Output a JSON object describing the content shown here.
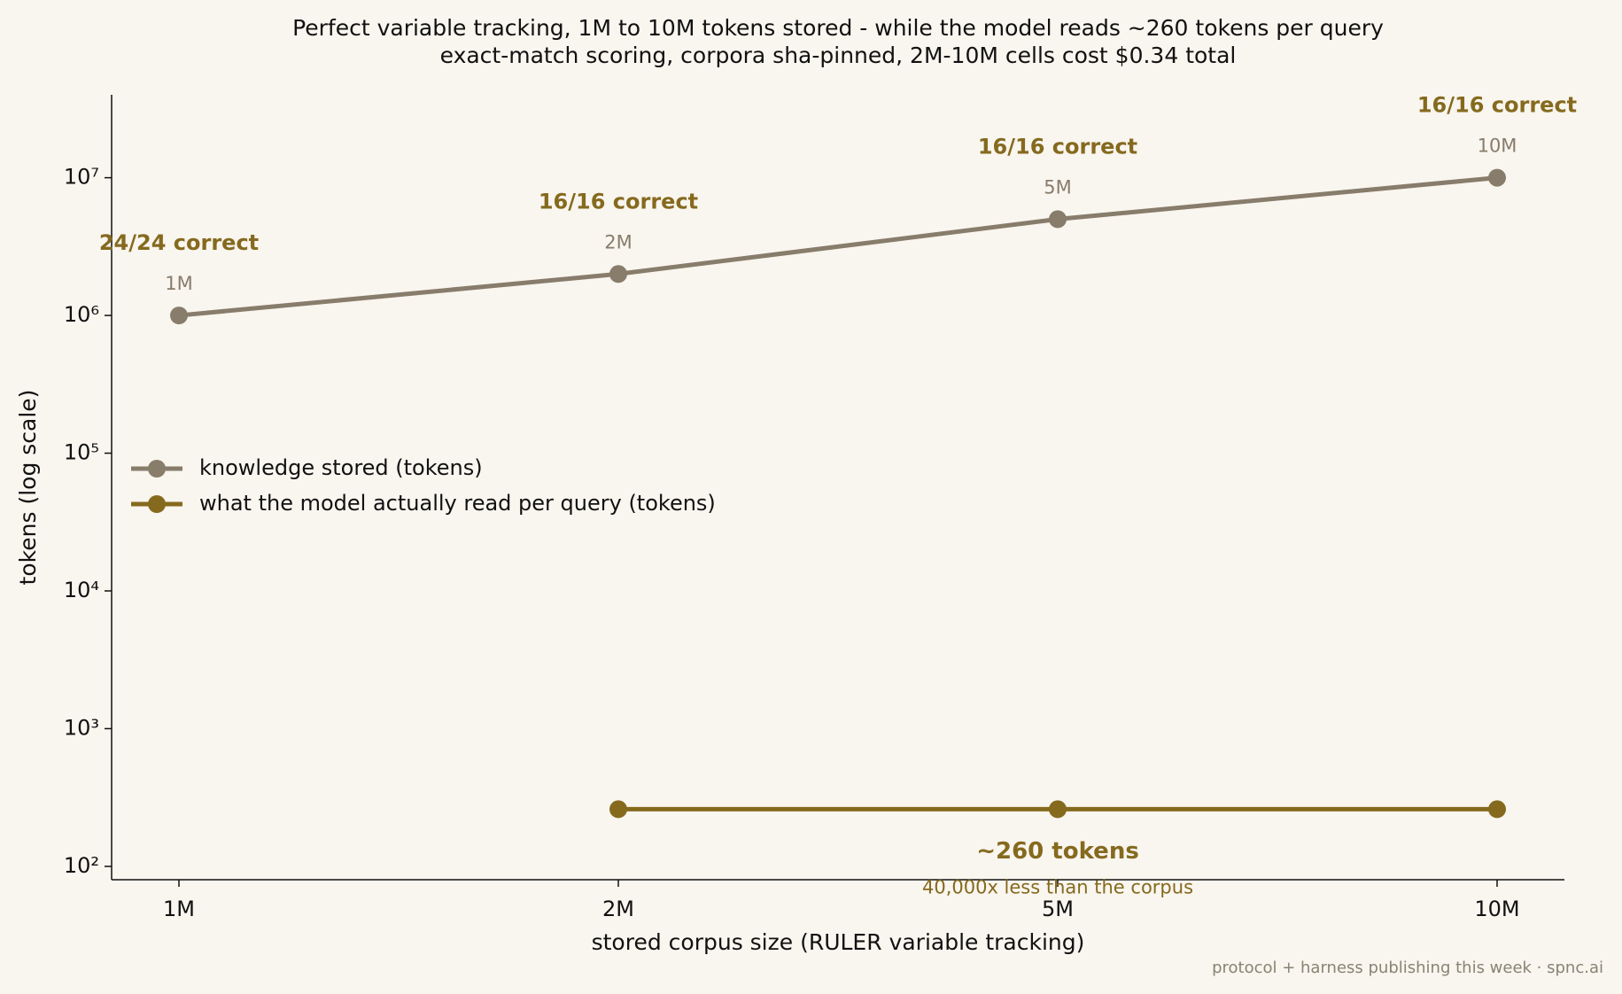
{
  "chart_data": {
    "type": "line",
    "title": "Perfect variable tracking, 1M to 10M tokens stored - while the model reads ~260 tokens per query",
    "subtitle": "exact-match scoring, corpora sha-pinned, 2M-10M cells cost $0.34 total",
    "x_label": "stored corpus size (RULER variable tracking)",
    "y_label": "tokens (log scale)",
    "categories": [
      "1M",
      "2M",
      "5M",
      "10M"
    ],
    "series": [
      {
        "name": "knowledge stored (tokens)",
        "color": "#887c6b",
        "values": [
          1000000,
          2000000,
          5000000,
          10000000
        ],
        "value_labels": [
          "1M",
          "2M",
          "5M",
          "10M"
        ]
      },
      {
        "name": "what the model actually read per query (tokens)",
        "color": "#856a1e",
        "values": [
          null,
          260,
          260,
          260
        ]
      }
    ],
    "correct_labels": [
      "24/24 correct",
      "16/16 correct",
      "16/16 correct",
      "16/16 correct"
    ],
    "read_annotation": "~260 tokens",
    "read_subannotation": "40,000x less than the corpus",
    "footer": "protocol + harness publishing this week · spnc.ai",
    "log_scale": true,
    "grid": false,
    "legend": "center left",
    "ylim": [
      80,
      40000000
    ],
    "yticks": [
      {
        "value": 100,
        "label": "10²"
      },
      {
        "value": 1000,
        "label": "10³"
      },
      {
        "value": 10000,
        "label": "10⁴"
      },
      {
        "value": 100000,
        "label": "10⁵"
      },
      {
        "value": 1000000,
        "label": "10⁶"
      },
      {
        "value": 10000000,
        "label": "10⁷"
      }
    ]
  }
}
